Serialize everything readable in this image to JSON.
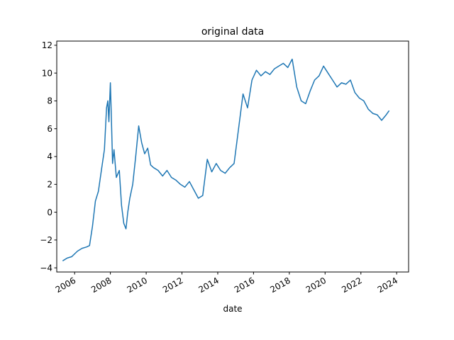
{
  "chart_data": {
    "type": "line",
    "title": "original data",
    "xlabel": "date",
    "ylabel": "",
    "grid": false,
    "legend": "none",
    "line_color": "#1f77b4",
    "xlim": [
      "2005-01-01",
      "2024-09-01"
    ],
    "ylim": [
      -4.3,
      12.3
    ],
    "x_tick_labels": [
      "2006",
      "2008",
      "2010",
      "2012",
      "2014",
      "2016",
      "2018",
      "2020",
      "2022",
      "2024"
    ],
    "y_tick_labels": [
      "−4",
      "−2",
      "0",
      "2",
      "4",
      "6",
      "8",
      "10",
      "12"
    ],
    "series": [
      {
        "x": [
          "2005-05-01",
          "2005-08-01",
          "2005-11-01",
          "2006-03-01",
          "2006-06-01",
          "2006-09-01",
          "2006-11-01",
          "2007-01-01",
          "2007-03-01",
          "2007-05-01",
          "2007-07-01",
          "2007-09-01",
          "2007-10-15",
          "2007-11-10",
          "2007-12-01",
          "2008-01-01",
          "2008-01-20",
          "2008-02-15",
          "2008-03-15",
          "2008-05-01",
          "2008-07-01",
          "2008-08-15",
          "2008-10-01",
          "2008-11-15",
          "2008-12-20",
          "2009-02-01",
          "2009-04-01",
          "2009-06-01",
          "2009-08-01",
          "2009-10-01",
          "2009-12-01",
          "2010-02-01",
          "2010-04-01",
          "2010-06-01",
          "2010-09-01",
          "2010-12-01",
          "2011-03-01",
          "2011-06-01",
          "2011-09-01",
          "2011-12-01",
          "2012-03-01",
          "2012-06-01",
          "2012-09-01",
          "2012-12-01",
          "2013-03-01",
          "2013-06-01",
          "2013-09-01",
          "2013-12-01",
          "2014-03-01",
          "2014-06-01",
          "2014-09-01",
          "2014-12-01",
          "2015-03-01",
          "2015-06-01",
          "2015-09-01",
          "2015-12-01",
          "2016-03-01",
          "2016-06-01",
          "2016-09-01",
          "2016-12-01",
          "2017-03-01",
          "2017-06-01",
          "2017-09-01",
          "2017-12-01",
          "2018-03-01",
          "2018-06-01",
          "2018-09-01",
          "2018-12-01",
          "2019-03-01",
          "2019-06-01",
          "2019-09-01",
          "2019-12-01",
          "2020-03-01",
          "2020-06-01",
          "2020-09-01",
          "2020-12-01",
          "2021-03-01",
          "2021-06-01",
          "2021-09-01",
          "2021-12-01",
          "2022-03-01",
          "2022-06-01",
          "2022-09-01",
          "2022-12-01",
          "2023-03-01",
          "2023-06-01",
          "2023-08-01"
        ],
        "y": [
          -3.5,
          -3.3,
          -3.2,
          -2.8,
          -2.6,
          -2.5,
          -2.4,
          -1.0,
          0.8,
          1.5,
          3.0,
          4.5,
          7.5,
          8.0,
          6.5,
          9.3,
          7.0,
          3.5,
          4.5,
          2.5,
          3.0,
          0.5,
          -0.8,
          -1.2,
          0.0,
          1.0,
          2.0,
          4.0,
          6.2,
          5.0,
          4.2,
          4.6,
          3.4,
          3.2,
          3.0,
          2.6,
          3.0,
          2.5,
          2.3,
          2.0,
          1.8,
          2.2,
          1.6,
          1.0,
          1.2,
          3.8,
          2.9,
          3.5,
          3.0,
          2.8,
          3.2,
          3.5,
          6.0,
          8.5,
          7.5,
          9.5,
          10.2,
          9.8,
          10.1,
          9.9,
          10.3,
          10.5,
          10.7,
          10.4,
          11.0,
          9.0,
          8.0,
          7.8,
          8.7,
          9.5,
          9.8,
          10.5,
          10.0,
          9.5,
          9.0,
          9.3,
          9.2,
          9.5,
          8.6,
          8.2,
          8.0,
          7.4,
          7.1,
          7.0,
          6.6,
          7.0,
          7.3
        ]
      }
    ]
  }
}
